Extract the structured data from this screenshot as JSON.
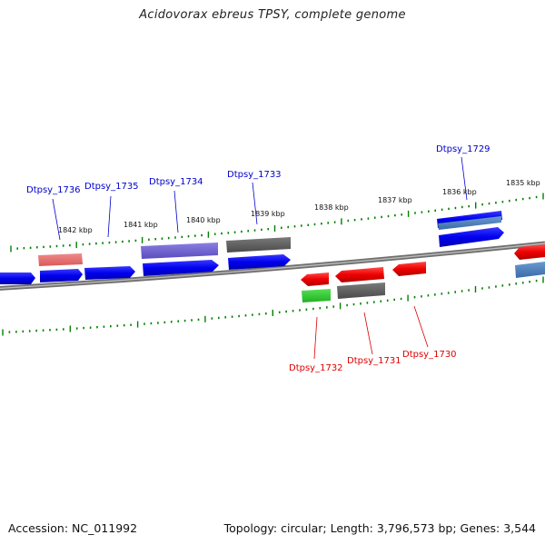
{
  "title": "Acidovorax ebreus TPSY, complete genome",
  "footer": {
    "accession": "Accession: NC_011992",
    "summary": "Topology: circular; Length: 3,796,573 bp; Genes: 3,544"
  },
  "colors": {
    "backbone": "#808080",
    "tick": "#008000",
    "forward_label": "#0000cc",
    "reverse_label": "#dd0000"
  },
  "kbp_labels": [
    "1842 kbp",
    "1841 kbp",
    "1840 kbp",
    "1839 kbp",
    "1838 kbp",
    "1837 kbp",
    "1836 kbp",
    "1835 kbp"
  ],
  "forward_gene_labels": [
    "Dtpsy_1736",
    "Dtpsy_1735",
    "Dtpsy_1734",
    "Dtpsy_1733",
    "Dtpsy_1729"
  ],
  "reverse_gene_labels": [
    "Dtpsy_1732",
    "Dtpsy_1731",
    "Dtpsy_1730"
  ]
}
